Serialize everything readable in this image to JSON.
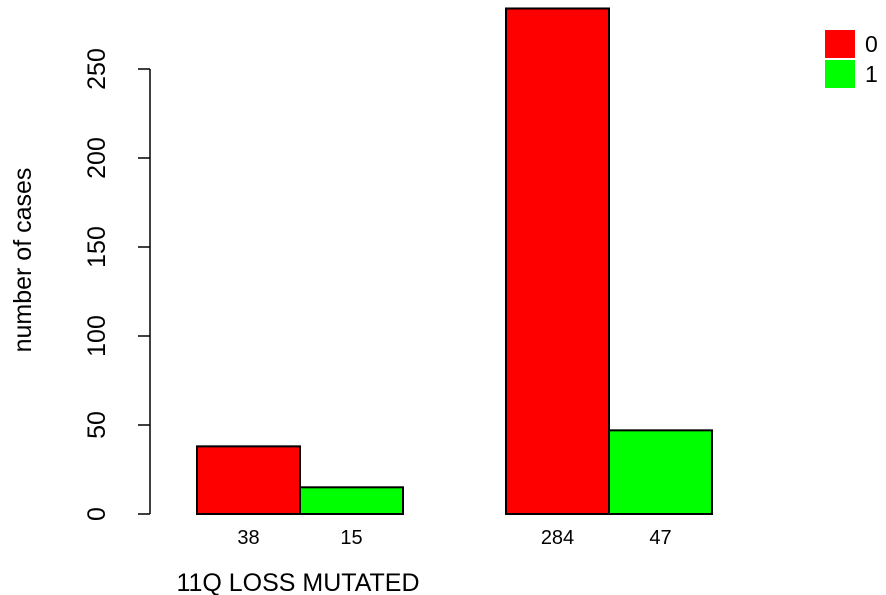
{
  "chart_data": {
    "type": "bar",
    "xlabel": "11Q LOSS MUTATED",
    "ylabel": "number of cases",
    "ylim": [
      0,
      285
    ],
    "yticks": [
      0,
      50,
      100,
      150,
      200,
      250
    ],
    "grid": false,
    "legend_position": "top-right",
    "groups": [
      {
        "bars": [
          {
            "series": "0",
            "value": 38,
            "label": "38"
          },
          {
            "series": "1",
            "value": 15,
            "label": "15"
          }
        ]
      },
      {
        "bars": [
          {
            "series": "0",
            "value": 284,
            "label": "284"
          },
          {
            "series": "1",
            "value": 47,
            "label": "47"
          }
        ]
      }
    ],
    "series": [
      {
        "name": "0",
        "color": "#ff0000",
        "values": [
          38,
          284
        ]
      },
      {
        "name": "1",
        "color": "#00ff00",
        "values": [
          15,
          47
        ]
      }
    ]
  }
}
